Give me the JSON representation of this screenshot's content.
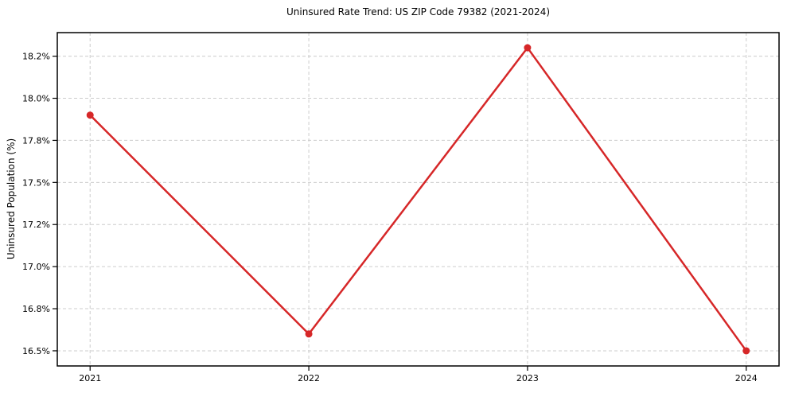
{
  "chart_data": {
    "type": "line",
    "title": "Uninsured Rate Trend: US ZIP Code 79382 (2021-2024)",
    "xlabel": "",
    "ylabel": "Uninsured Population (%)",
    "x": [
      2021,
      2022,
      2023,
      2024
    ],
    "values": [
      17.9,
      16.6,
      18.3,
      16.5
    ],
    "unit": "%",
    "xticks": [
      {
        "value": 2021,
        "label": "2021"
      },
      {
        "value": 2022,
        "label": "2022"
      },
      {
        "value": 2023,
        "label": "2023"
      },
      {
        "value": 2024,
        "label": "2024"
      }
    ],
    "yticks": [
      {
        "value": 16.5,
        "label": "16.5%"
      },
      {
        "value": 16.75,
        "label": "16.8%"
      },
      {
        "value": 17.0,
        "label": "17.0%"
      },
      {
        "value": 17.25,
        "label": "17.2%"
      },
      {
        "value": 17.5,
        "label": "17.5%"
      },
      {
        "value": 17.75,
        "label": "17.8%"
      },
      {
        "value": 18.0,
        "label": "18.0%"
      },
      {
        "value": 18.25,
        "label": "18.2%"
      }
    ],
    "xlim": [
      2020.85,
      2024.15
    ],
    "ylim": [
      16.41,
      18.39
    ],
    "grid": true,
    "grid_style": "dashed",
    "legend_position": "none",
    "colors": {
      "line": "#d62728",
      "marker": "#d62728",
      "grid": "#cccccc",
      "axis": "#000000",
      "text": "#000000"
    }
  }
}
